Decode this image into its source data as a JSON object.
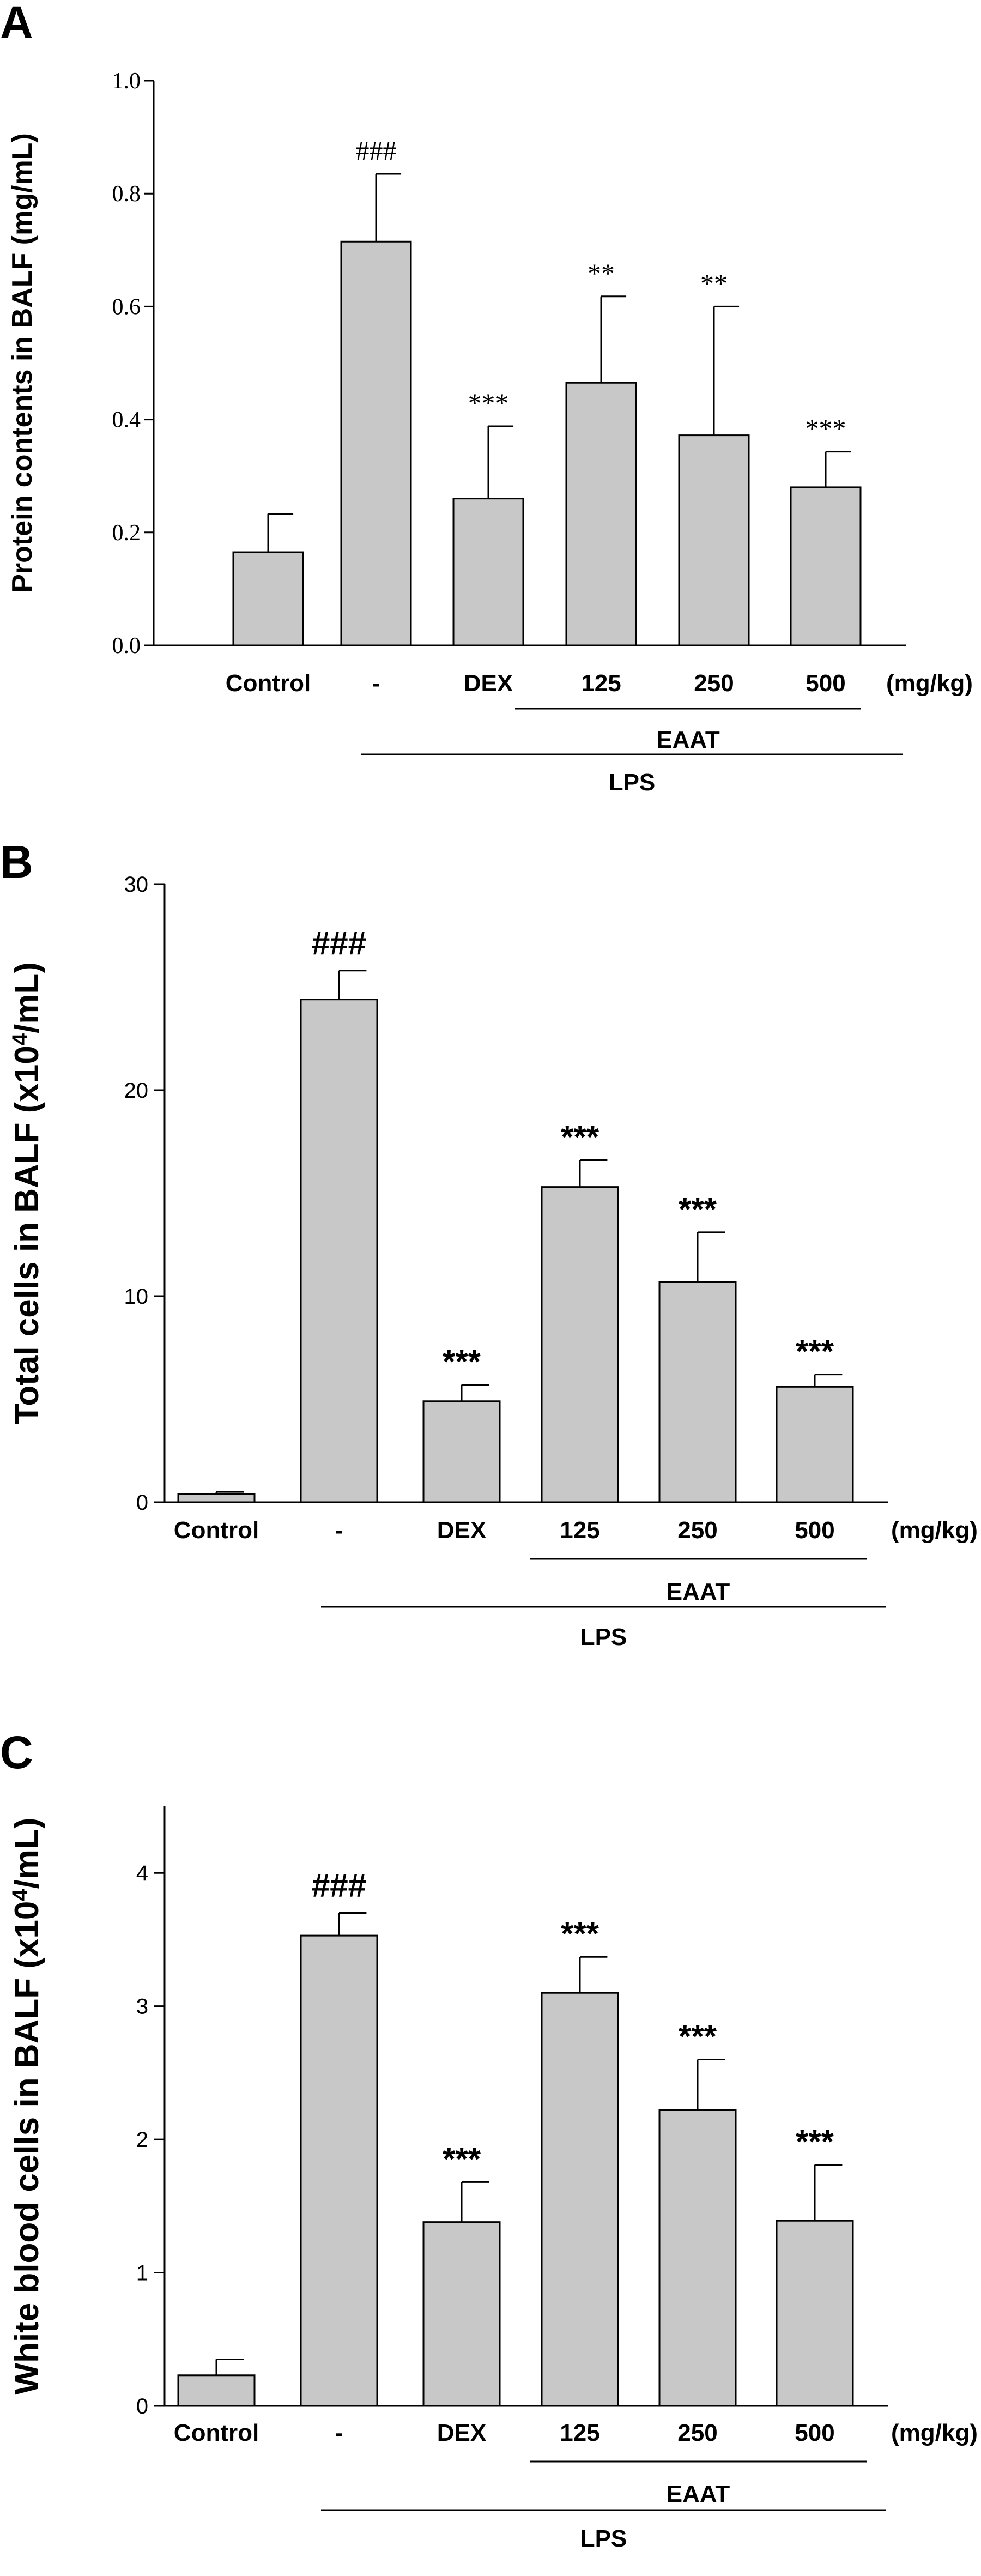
{
  "chart_data": [
    {
      "type": "bar",
      "panel_label": "A",
      "ylabel": "Protein contents in BALF (mg/mL)",
      "categories": [
        "Control",
        "-",
        "DEX",
        "125",
        "250",
        "500"
      ],
      "unit_label": "(mg/kg)",
      "values": [
        0.165,
        0.715,
        0.26,
        0.465,
        0.372,
        0.28
      ],
      "errors": [
        0.068,
        0.12,
        0.128,
        0.153,
        0.228,
        0.063
      ],
      "annotations": [
        "",
        "###",
        "***",
        "**",
        "**",
        "***"
      ],
      "ylim": [
        0,
        1.0
      ],
      "yticks": [
        "0.0",
        "0.2",
        "0.4",
        "0.6",
        "0.8",
        "1.0"
      ],
      "ytick_values": [
        0,
        0.2,
        0.4,
        0.6,
        0.8,
        1.0
      ],
      "groups": [
        {
          "label": "EAAT",
          "from": 3,
          "to": 5
        },
        {
          "label": "LPS",
          "from": 1,
          "to": 5
        }
      ]
    },
    {
      "type": "bar",
      "panel_label": "B",
      "ylabel_prefix": "Total cells in BALF (x10",
      "ylabel_sup": "4",
      "ylabel_suffix": "/mL)",
      "categories": [
        "Control",
        "-",
        "DEX",
        "125",
        "250",
        "500"
      ],
      "unit_label": "(mg/kg)",
      "values": [
        0.4,
        24.4,
        4.9,
        15.3,
        10.7,
        5.6
      ],
      "errors": [
        0.1,
        1.4,
        0.8,
        1.3,
        2.4,
        0.6
      ],
      "annotations": [
        "",
        "###",
        "***",
        "***",
        "***",
        "***"
      ],
      "ylim": [
        0,
        30
      ],
      "yticks": [
        "0",
        "10",
        "20",
        "30"
      ],
      "ytick_values": [
        0,
        10,
        20,
        30
      ],
      "groups": [
        {
          "label": "EAAT",
          "from": 3,
          "to": 5
        },
        {
          "label": "LPS",
          "from": 1,
          "to": 5
        }
      ]
    },
    {
      "type": "bar",
      "panel_label": "C",
      "ylabel_prefix": "White blood cells in BALF (x10",
      "ylabel_sup": "4",
      "ylabel_suffix": "/mL)",
      "categories": [
        "Control",
        "-",
        "DEX",
        "125",
        "250",
        "500"
      ],
      "unit_label": "(mg/kg)",
      "values": [
        0.23,
        3.53,
        1.38,
        3.1,
        2.22,
        1.39
      ],
      "errors": [
        0.12,
        0.17,
        0.3,
        0.27,
        0.38,
        0.42
      ],
      "annotations": [
        "",
        "###",
        "***",
        "***",
        "***",
        "***"
      ],
      "ylim": [
        0,
        4.5
      ],
      "yticks": [
        "0",
        "1",
        "2",
        "3",
        "4"
      ],
      "ytick_values": [
        0,
        1,
        2,
        3,
        4
      ],
      "groups": [
        {
          "label": "EAAT",
          "from": 3,
          "to": 5
        },
        {
          "label": "LPS",
          "from": 1,
          "to": 5
        }
      ]
    }
  ]
}
